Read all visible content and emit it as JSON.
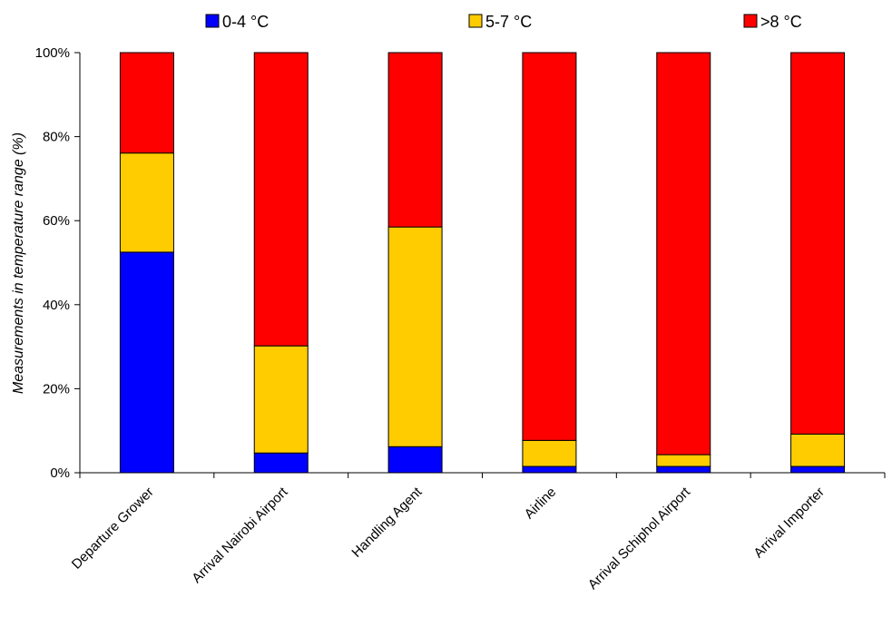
{
  "chart_data": {
    "type": "bar",
    "stacked": true,
    "categories": [
      "Departure Grower",
      "Arrival Nairobi Airport",
      "Handling Agent",
      "Airline",
      "Arrival Schiphol Airport",
      "Arrival Importer"
    ],
    "series": [
      {
        "name": "0-4 °C",
        "color": "#0000FF",
        "values": [
          52.5,
          4.7,
          6.2,
          1.5,
          1.5,
          1.5
        ]
      },
      {
        "name": "5-7 °C",
        "color": "#FFCC00",
        "values": [
          23.6,
          25.5,
          52.3,
          6.2,
          2.8,
          7.7
        ]
      },
      {
        "name": ">8 °C",
        "color": "#FF0000",
        "values": [
          23.9,
          69.8,
          41.5,
          92.3,
          95.7,
          90.8
        ]
      }
    ],
    "ylabel": "Measurements in temperature range (%)",
    "yticks": [
      "0%",
      "20%",
      "40%",
      "60%",
      "80%",
      "100%"
    ],
    "ylim": [
      0,
      100
    ],
    "grid": false,
    "legend_position": "top"
  }
}
